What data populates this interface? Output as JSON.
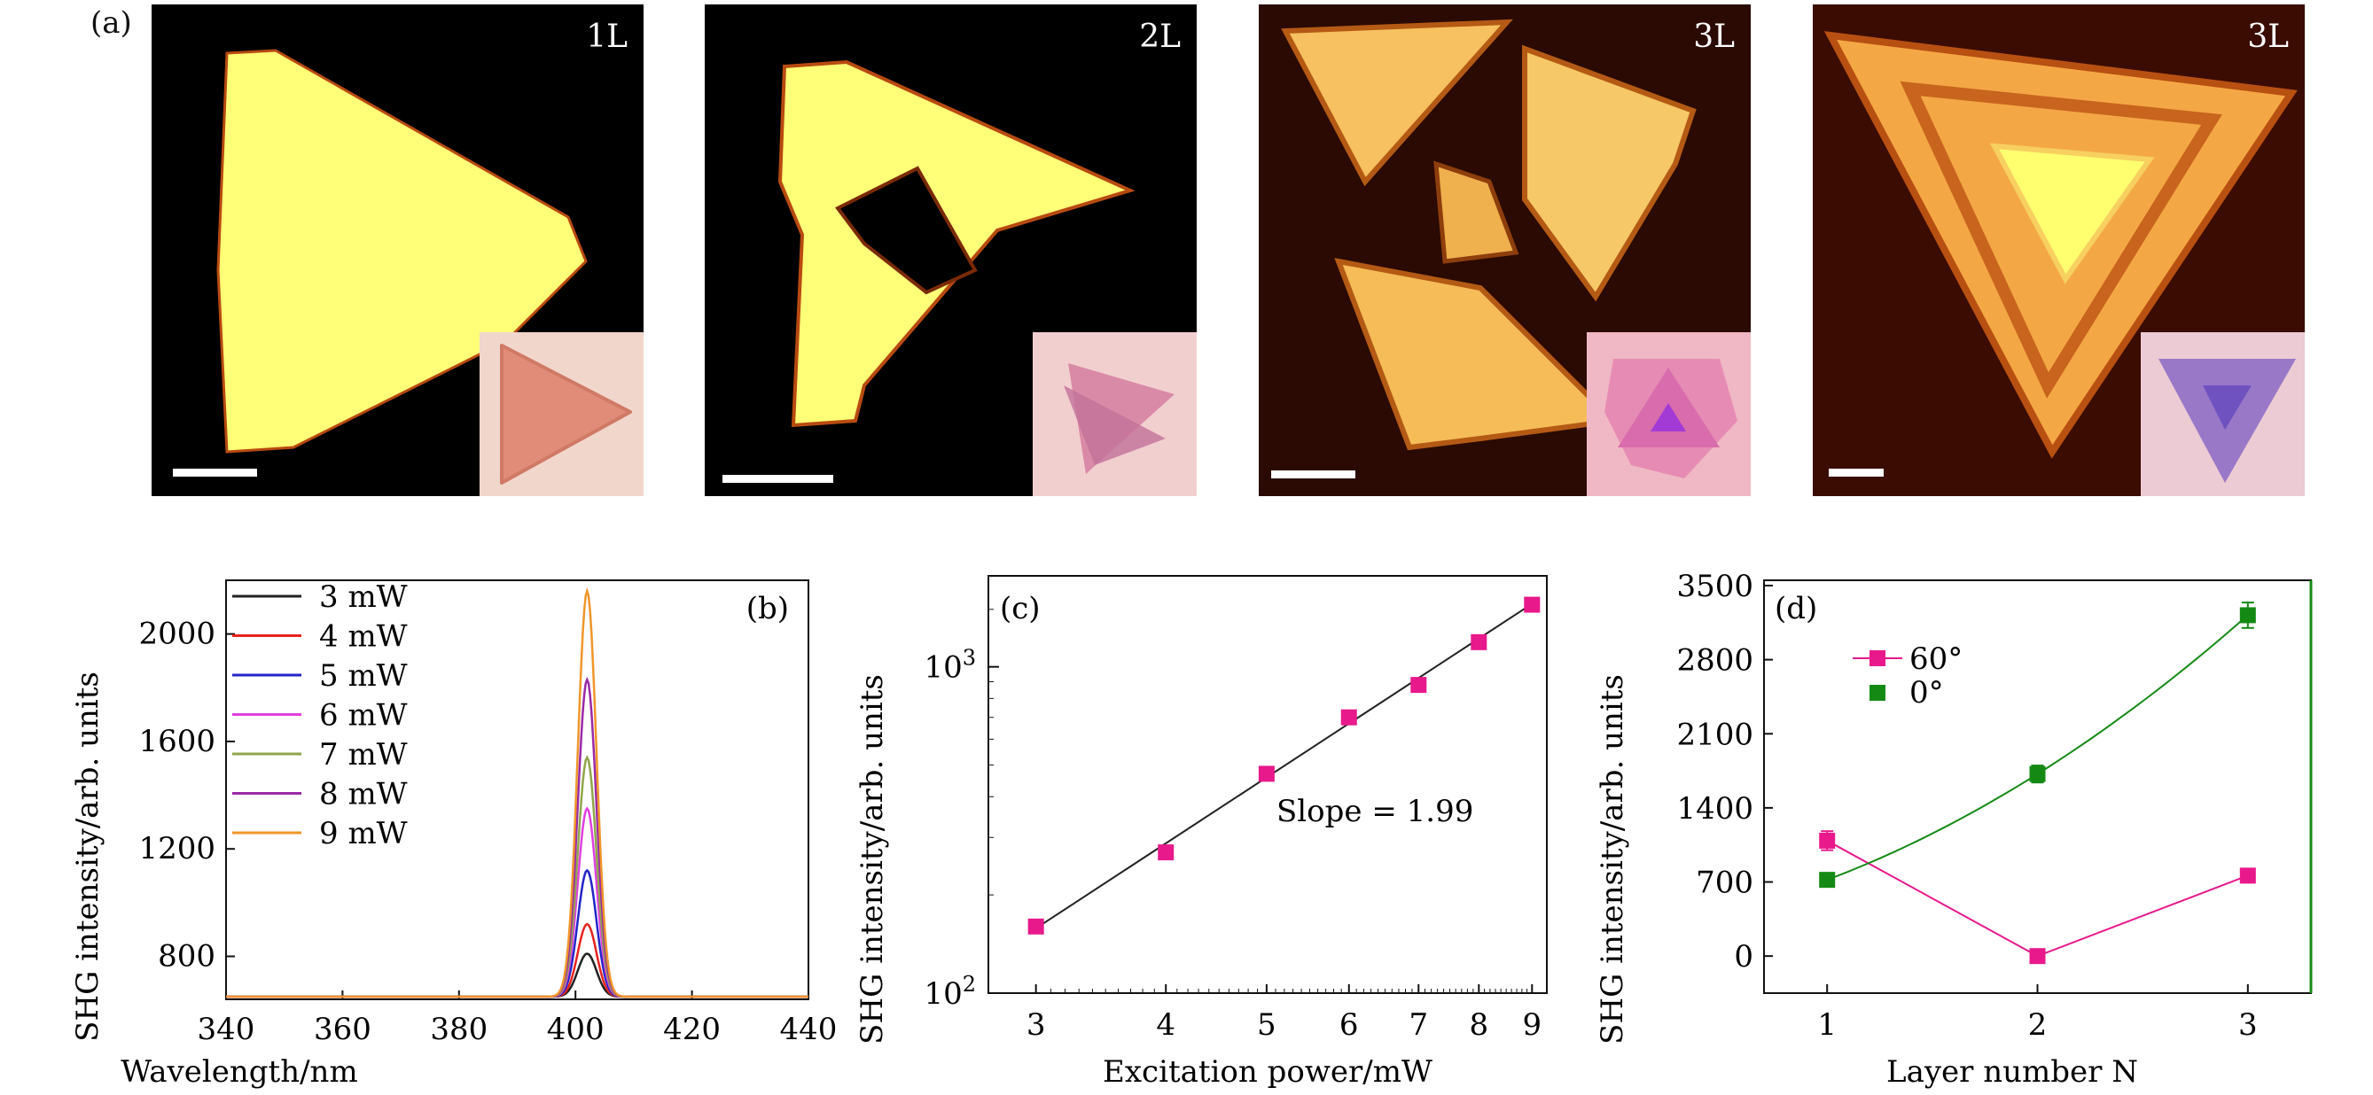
{
  "figure": {
    "panel_a_label": "(a)",
    "images": [
      {
        "layer_tag": "1L"
      },
      {
        "layer_tag": "2L"
      },
      {
        "layer_tag": "3L"
      },
      {
        "layer_tag": "3L"
      }
    ]
  },
  "chart_data": [
    {
      "id": "b",
      "type": "line",
      "panel_label": "(b)",
      "xlabel": "Wavelength/nm",
      "ylabel": "SHG intensity/arb. units",
      "xlim": [
        340,
        440
      ],
      "ylim": [
        640,
        2200
      ],
      "xticks": [
        340,
        360,
        380,
        400,
        420,
        440
      ],
      "yticks": [
        800,
        1200,
        1600,
        2000
      ],
      "baseline": 650,
      "peak_center": 402,
      "peak_width": 1.6,
      "legend_position": "top-left",
      "series": [
        {
          "name": "3 mW",
          "peak": 810,
          "color": "#222222"
        },
        {
          "name": "4 mW",
          "peak": 920,
          "color": "#e8231f"
        },
        {
          "name": "5 mW",
          "peak": 1120,
          "color": "#2424c8"
        },
        {
          "name": "6 mW",
          "peak": 1350,
          "color": "#e040e0"
        },
        {
          "name": "7 mW",
          "peak": 1540,
          "color": "#8fa64a"
        },
        {
          "name": "8 mW",
          "peak": 1830,
          "color": "#9a2aa6"
        },
        {
          "name": "9 mW",
          "peak": 2160,
          "color": "#f0962a"
        }
      ]
    },
    {
      "id": "c",
      "type": "scatter",
      "panel_label": "(c)",
      "xlabel": "Excitation power/mW",
      "ylabel": "SHG intensity/arb. units",
      "xscale": "log",
      "yscale": "log",
      "xlim": [
        2.7,
        9.3
      ],
      "ylim": [
        100,
        1900
      ],
      "xticks": [
        3,
        4,
        5,
        6,
        7,
        8,
        9
      ],
      "yticks": [
        {
          "value": 100,
          "base": "10",
          "exp": "2"
        },
        {
          "value": 1000,
          "base": "10",
          "exp": "3"
        }
      ],
      "x": [
        3,
        4,
        5,
        6,
        7,
        8,
        9
      ],
      "y": [
        160,
        270,
        470,
        700,
        880,
        1190,
        1550
      ],
      "fit_line": {
        "x": [
          3,
          9
        ],
        "y": [
          158,
          1560
        ]
      },
      "annotation": "Slope = 1.99",
      "marker_color": "#e8198b"
    },
    {
      "id": "d",
      "type": "scatter",
      "panel_label": "(d)",
      "xlabel": "Layer number N",
      "ylabel": "SHG intensity/arb. units",
      "xlim": [
        0.7,
        3.3
      ],
      "ylim": [
        -350,
        3550
      ],
      "xticks": [
        1,
        2,
        3
      ],
      "yticks": [
        0,
        700,
        1400,
        2100,
        2800,
        3500
      ],
      "legend_position": "top-left",
      "series": [
        {
          "name": "60°",
          "x": [
            1,
            2,
            3
          ],
          "y": [
            1090,
            0,
            760
          ],
          "err": [
            90,
            25,
            30
          ],
          "color": "#e8198b",
          "connect": "straight"
        },
        {
          "name": "0°",
          "x": [
            1,
            2,
            3
          ],
          "y": [
            720,
            1720,
            3220
          ],
          "err": [
            40,
            80,
            120
          ],
          "color": "#148a14",
          "connect": "quadratic-fit"
        }
      ]
    }
  ]
}
